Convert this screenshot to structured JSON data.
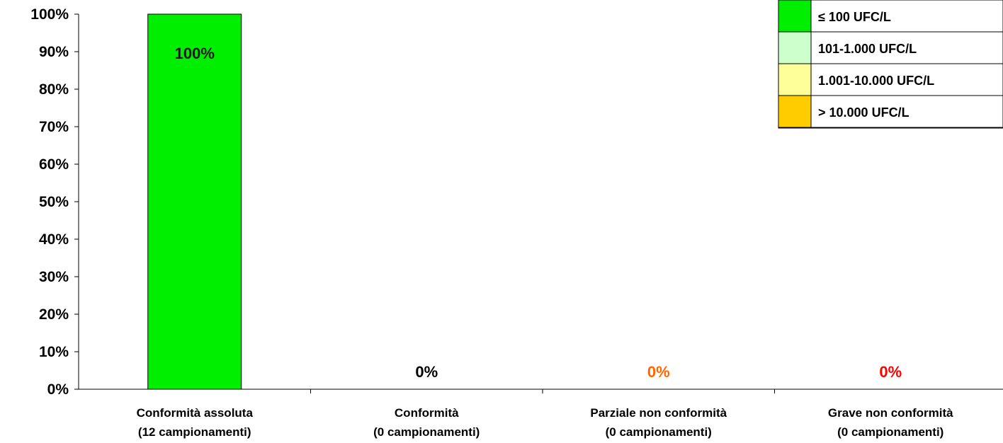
{
  "chart_data": {
    "type": "bar",
    "categories": [
      [
        "Conformità assoluta",
        "(12 campionamenti)"
      ],
      [
        "Conformità",
        "(0 campionamenti)"
      ],
      [
        "Parziale non conformità",
        "(0 campionamenti)"
      ],
      [
        "Grave non conformità",
        "(0 campionamenti)"
      ]
    ],
    "values": [
      100,
      0,
      0,
      0
    ],
    "data_labels": [
      "100%",
      "0%",
      "0%",
      "0%"
    ],
    "data_label_colors": [
      "#1a1a1a",
      "#000000",
      "#ff6600",
      "#ff0000"
    ],
    "bar_colors": [
      "#00ee00",
      "#ccffcc",
      "#ffff99",
      "#ffcc00"
    ],
    "ylim": [
      0,
      100
    ],
    "y_ticks": [
      0,
      10,
      20,
      30,
      40,
      50,
      60,
      70,
      80,
      90,
      100
    ],
    "y_tick_labels": [
      "0%",
      "10%",
      "20%",
      "30%",
      "40%",
      "50%",
      "60%",
      "70%",
      "80%",
      "90%",
      "100%"
    ],
    "grid": false,
    "legend": {
      "placement": "top-right",
      "entries": [
        {
          "label": "≤ 100 UFC/L",
          "color": "#00ee00"
        },
        {
          "label": "101-1.000 UFC/L",
          "color": "#ccffcc"
        },
        {
          "label": "1.001-10.000 UFC/L",
          "color": "#ffff99"
        },
        {
          "label": "> 10.000 UFC/L",
          "color": "#ffcc00"
        }
      ]
    }
  }
}
